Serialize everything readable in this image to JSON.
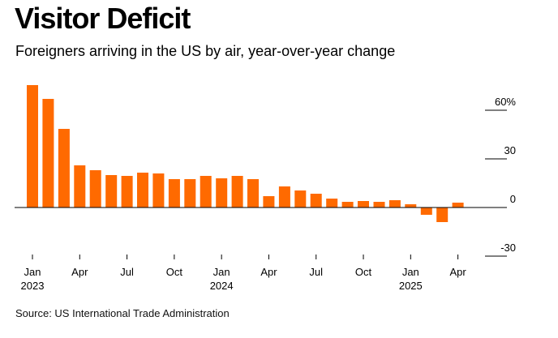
{
  "title": "Visitor Deficit",
  "subtitle": "Foreigners arriving in the US by air, year-over-year change",
  "source": "Source: US International Trade Administration",
  "colors": {
    "bar": "#ff6a00",
    "axis": "#000000",
    "gridline": "#000000"
  },
  "chart_data": {
    "type": "bar",
    "categories": [
      "Jan 2023",
      "Feb 2023",
      "Mar 2023",
      "Apr 2023",
      "May 2023",
      "Jun 2023",
      "Jul 2023",
      "Aug 2023",
      "Sep 2023",
      "Oct 2023",
      "Nov 2023",
      "Dec 2023",
      "Jan 2024",
      "Feb 2024",
      "Mar 2024",
      "Apr 2024",
      "May 2024",
      "Jun 2024",
      "Jul 2024",
      "Aug 2024",
      "Sep 2024",
      "Oct 2024",
      "Nov 2024",
      "Dec 2024",
      "Jan 2025",
      "Feb 2025",
      "Mar 2025",
      "Apr 2025"
    ],
    "values": [
      75.5,
      67,
      48.5,
      26,
      23,
      20,
      19.5,
      21.5,
      21,
      17.5,
      17.5,
      19.5,
      18,
      19.5,
      17.5,
      7,
      13,
      10.5,
      8.5,
      5.5,
      3.5,
      4,
      3.5,
      4.5,
      2,
      -4.5,
      -9,
      3
    ],
    "x_tick_labels": [
      {
        "index": 0,
        "line1": "Jan",
        "line2": "2023"
      },
      {
        "index": 3,
        "line1": "Apr",
        "line2": ""
      },
      {
        "index": 6,
        "line1": "Jul",
        "line2": ""
      },
      {
        "index": 9,
        "line1": "Oct",
        "line2": ""
      },
      {
        "index": 12,
        "line1": "Jan",
        "line2": "2024"
      },
      {
        "index": 15,
        "line1": "Apr",
        "line2": ""
      },
      {
        "index": 18,
        "line1": "Jul",
        "line2": ""
      },
      {
        "index": 21,
        "line1": "Oct",
        "line2": ""
      },
      {
        "index": 24,
        "line1": "Jan",
        "line2": "2025"
      },
      {
        "index": 27,
        "line1": "Apr",
        "line2": ""
      }
    ],
    "y_ticks": [
      {
        "value": 60,
        "label": "60%"
      },
      {
        "value": 30,
        "label": "30"
      },
      {
        "value": 0,
        "label": "0"
      },
      {
        "value": -30,
        "label": "-30"
      }
    ],
    "ylim": [
      -30,
      75.5
    ],
    "y_axis_position": "right",
    "grid": false
  }
}
